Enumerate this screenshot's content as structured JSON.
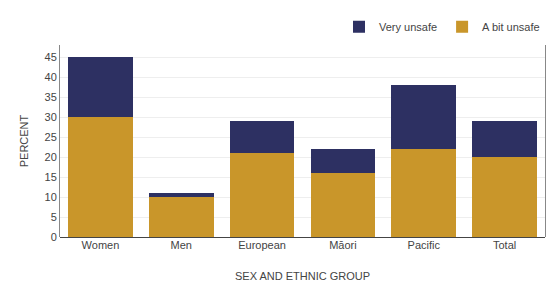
{
  "chart_data": {
    "type": "bar",
    "stacked": true,
    "categories": [
      "Women",
      "Men",
      "European",
      "Māori",
      "Pacific",
      "Total"
    ],
    "series": [
      {
        "name": "A bit unsafe",
        "color": "#C9962A",
        "values": [
          30,
          10,
          21,
          16,
          22,
          20
        ]
      },
      {
        "name": "Very unsafe",
        "color": "#2D3062",
        "values": [
          15,
          1,
          8,
          6,
          16,
          9
        ]
      }
    ],
    "xlabel": "SEX AND ETHNIC GROUP",
    "ylabel": "PERCENT",
    "ylim": [
      0,
      48
    ],
    "yticks": [
      0,
      5,
      10,
      15,
      20,
      25,
      30,
      35,
      40,
      45
    ],
    "grid": true,
    "legend": "upper right"
  }
}
